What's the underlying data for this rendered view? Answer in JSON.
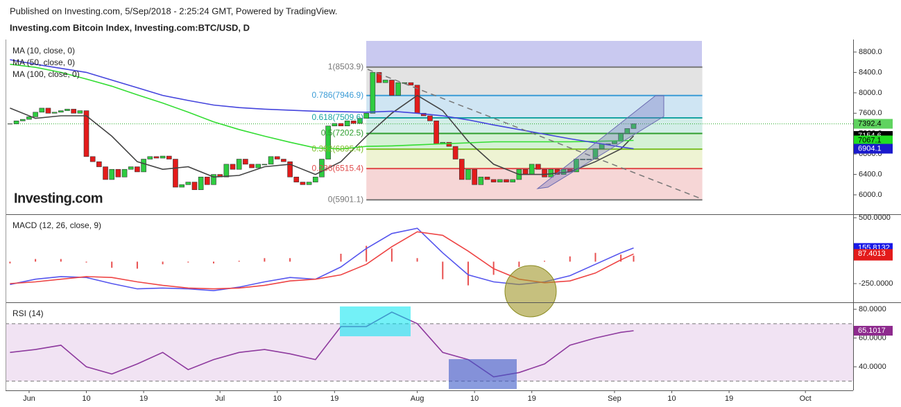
{
  "header": {
    "published": "Published on Investing.com, 5/Sep/2018 - 2:25:24 GMT, Powered by TradingView.",
    "title": "Investing.com Bitcoin Index, Investing.com:BTC/USD, D",
    "logo": "Investing.com"
  },
  "chart_data": [
    {
      "type": "candlestick",
      "xlim": [
        -3.7,
        129.5
      ],
      "ylim": [
        5633,
        9045
      ],
      "yticks": [
        {
          "value": 6000,
          "label": "6000.0"
        },
        {
          "value": 6400,
          "label": "6400.0"
        },
        {
          "value": 6800,
          "label": "6800.0"
        },
        {
          "value": 7200,
          "label": "7200.0"
        },
        {
          "value": 7600,
          "label": "7600.0"
        },
        {
          "value": 8000,
          "label": "8000.0"
        },
        {
          "value": 8400,
          "label": "8400.0"
        },
        {
          "value": 8800,
          "label": "8800.0"
        }
      ],
      "x": [
        -3,
        -2,
        -1,
        0,
        1,
        2,
        3,
        4,
        5,
        6,
        7,
        8,
        9,
        10,
        11,
        12,
        13,
        14,
        15,
        16,
        17,
        18,
        19,
        20,
        21,
        22,
        23,
        24,
        25,
        26,
        27,
        28,
        29,
        30,
        31,
        32,
        33,
        34,
        35,
        36,
        37,
        38,
        39,
        40,
        41,
        42,
        43,
        44,
        45,
        46,
        47,
        48,
        49,
        50,
        51,
        52,
        53,
        54,
        55,
        56,
        57,
        58,
        59,
        60,
        61,
        62,
        63,
        64,
        65,
        66,
        67,
        68,
        69,
        70,
        71,
        72,
        73,
        74,
        75,
        76,
        77,
        78,
        79,
        80,
        81,
        82,
        83,
        84,
        85,
        86,
        87,
        88,
        89,
        90,
        91,
        92,
        93,
        94,
        95
      ],
      "values": [
        7390,
        7450,
        7480,
        7530,
        7620,
        7700,
        7600,
        7620,
        7650,
        7680,
        7600,
        7650,
        6750,
        6650,
        6550,
        6300,
        6500,
        6350,
        6500,
        6550,
        6450,
        6700,
        6750,
        6720,
        6760,
        6700,
        6150,
        6200,
        6250,
        6100,
        6350,
        6200,
        6400,
        6350,
        6600,
        6500,
        6700,
        6600,
        6530,
        6600,
        6600,
        6750,
        6700,
        6650,
        6350,
        6250,
        6200,
        6250,
        6350,
        6700,
        7350,
        7400,
        7350,
        7450,
        7400,
        7500,
        7600,
        8400,
        8200,
        8250,
        7950,
        8200,
        8200,
        8150,
        7600,
        7550,
        7450,
        7000,
        7030,
        6950,
        6700,
        6300,
        6500,
        6200,
        6350,
        6300,
        6250,
        6300,
        6250,
        6300,
        6500,
        6400,
        6600,
        6500,
        6350,
        6500,
        6400,
        6500,
        6450,
        6700,
        6700,
        6700,
        6900,
        7000,
        7000,
        7050,
        7200,
        7300,
        7392.4
      ],
      "up_color": "#2ecc40",
      "down_color": "#e31b1b",
      "last_color": "#5fd35f",
      "series": [
        {
          "name": "MA (10, close, 0)",
          "color": "#444444",
          "label_color": "#000000",
          "x": [
            -3,
            1,
            5,
            9,
            13,
            17,
            21,
            25,
            29,
            33,
            37,
            41,
            45,
            49,
            53,
            57,
            61,
            65,
            69,
            73,
            77,
            81,
            85,
            89,
            93,
            95
          ],
          "values": [
            7700,
            7500,
            7550,
            7550,
            7150,
            6650,
            6500,
            6550,
            6350,
            6380,
            6550,
            6600,
            6400,
            6650,
            7150,
            7600,
            7950,
            7650,
            7050,
            6600,
            6400,
            6400,
            6450,
            6650,
            6900,
            7154.6
          ]
        },
        {
          "name": "MA (50, close, 0)",
          "color": "#33dd33",
          "label_color": "#22dd22",
          "x": [
            -3,
            1,
            5,
            9,
            13,
            17,
            21,
            25,
            29,
            33,
            37,
            41,
            45,
            49,
            53,
            57,
            61,
            65,
            69,
            73,
            77,
            81,
            85,
            89,
            93,
            95
          ],
          "values": [
            8560,
            8500,
            8400,
            8270,
            8130,
            7960,
            7800,
            7620,
            7430,
            7280,
            7150,
            7030,
            6920,
            6900,
            6950,
            6960,
            6980,
            7000,
            7020,
            7040,
            7040,
            7040,
            7040,
            7050,
            7060,
            7067.1
          ]
        },
        {
          "name": "MA (100, close, 0)",
          "color": "#4444dd",
          "label_color": "#1a1acc",
          "x": [
            -3,
            1,
            5,
            9,
            13,
            17,
            21,
            25,
            29,
            33,
            37,
            41,
            45,
            49,
            53,
            57,
            61,
            65,
            69,
            73,
            77,
            81,
            85,
            89,
            93,
            95
          ],
          "values": [
            8650,
            8560,
            8480,
            8400,
            8250,
            8100,
            7950,
            7850,
            7760,
            7710,
            7680,
            7660,
            7640,
            7630,
            7620,
            7640,
            7600,
            7550,
            7470,
            7370,
            7280,
            7190,
            7100,
            7020,
            6940,
            6904.1
          ]
        }
      ],
      "fib_x": [
        53,
        105.8
      ],
      "fib": [
        {
          "value": 8503.9,
          "label": "1(8503.9)",
          "color": "#777777",
          "band_color": "#e3e3e3"
        },
        {
          "value": 7946.9,
          "label": "0.786(7946.9)",
          "color": "#3a9bd6",
          "band_color": "#cfe5f3"
        },
        {
          "value": 7509.6,
          "label": "0.618(7509.6)",
          "color": "#19a3a3",
          "band_color": "#d3eee8"
        },
        {
          "value": 7202.5,
          "label": "0.5(7202.5)",
          "color": "#2e9e2e",
          "band_color": "#d5f1d5"
        },
        {
          "value": 6895.4,
          "label": "0.382(6895.4)",
          "color": "#7cbf26",
          "band_color": "#eef3d3"
        },
        {
          "value": 6515.4,
          "label": "0.236(6515.4)",
          "color": "#e04a4a",
          "band_color": "#f6d6d6"
        },
        {
          "value": 5901.1,
          "label": "0(5901.1)",
          "color": "#777777"
        }
      ]
    },
    {
      "type": "line",
      "title": "MACD (12, 26, close, 9)",
      "xlim": [
        -3.7,
        129.5
      ],
      "ylim": [
        -455,
        524
      ],
      "yticks": [
        {
          "value": -250,
          "label": "-250.0000"
        },
        {
          "value": 500,
          "label": "500.0000"
        }
      ],
      "series": [
        {
          "style": "histogram",
          "color": "#e85050",
          "label_color": "#e31b1b",
          "x": [
            -3,
            1,
            5,
            9,
            13,
            17,
            21,
            25,
            29,
            33,
            37,
            41,
            45,
            49,
            53,
            57,
            61,
            65,
            69,
            73,
            77,
            81,
            85,
            89,
            93,
            95
          ],
          "values": [
            -20,
            30,
            30,
            -10,
            -70,
            -80,
            -30,
            -10,
            -20,
            10,
            40,
            40,
            0,
            90,
            180,
            150,
            40,
            -200,
            -270,
            -150,
            -60,
            10,
            60,
            100,
            80,
            68.4118
          ]
        },
        {
          "color": "#5555ee",
          "label_color": "#1a1ae6",
          "x": [
            -3,
            1,
            5,
            9,
            13,
            17,
            21,
            25,
            29,
            33,
            37,
            41,
            45,
            49,
            53,
            57,
            61,
            65,
            69,
            73,
            77,
            81,
            85,
            89,
            93,
            95
          ],
          "values": [
            -260,
            -200,
            -170,
            -180,
            -250,
            -310,
            -300,
            -310,
            -330,
            -290,
            -230,
            -180,
            -200,
            -60,
            150,
            320,
            380,
            100,
            -150,
            -230,
            -260,
            -230,
            -160,
            -30,
            100,
            155.8132
          ]
        },
        {
          "color": "#ee4444",
          "label_color": "#e31b1b",
          "x": [
            -3,
            1,
            5,
            9,
            13,
            17,
            21,
            25,
            29,
            33,
            37,
            41,
            45,
            49,
            53,
            57,
            61,
            65,
            69,
            73,
            77,
            81,
            85,
            89,
            93,
            95
          ],
          "values": [
            -250,
            -230,
            -200,
            -170,
            -180,
            -230,
            -270,
            -300,
            -310,
            -300,
            -270,
            -220,
            -200,
            -150,
            -30,
            170,
            340,
            300,
            120,
            -80,
            -200,
            -240,
            -220,
            -130,
            20,
            87.4013
          ]
        }
      ]
    },
    {
      "type": "line",
      "title": "RSI (14)",
      "xlim": [
        -3.7,
        129.5
      ],
      "ylim": [
        23.6,
        83.9
      ],
      "yticks": [
        {
          "value": 40,
          "label": "40.0000"
        },
        {
          "value": 60,
          "label": "60.0000"
        },
        {
          "value": 80,
          "label": "80.0000"
        }
      ],
      "band": [
        30,
        70
      ],
      "band_color": "#f1e3f3",
      "xticks": [
        {
          "value": 0,
          "label": "Jun"
        },
        {
          "value": 9,
          "label": "10"
        },
        {
          "value": 18,
          "label": "19"
        },
        {
          "value": 30,
          "label": "Jul"
        },
        {
          "value": 39,
          "label": "10"
        },
        {
          "value": 48,
          "label": "19"
        },
        {
          "value": 61,
          "label": "Aug"
        },
        {
          "value": 70,
          "label": "10"
        },
        {
          "value": 79,
          "label": "19"
        },
        {
          "value": 92,
          "label": "Sep"
        },
        {
          "value": 101,
          "label": "10"
        },
        {
          "value": 110,
          "label": "19"
        },
        {
          "value": 122,
          "label": "Oct"
        }
      ],
      "series": [
        {
          "color": "#8e3a9e",
          "label_color": "#8e2a8e",
          "x": [
            -3,
            1,
            5,
            9,
            13,
            17,
            21,
            25,
            29,
            33,
            37,
            41,
            45,
            49,
            53,
            57,
            61,
            65,
            69,
            73,
            77,
            81,
            85,
            89,
            93,
            95
          ],
          "values": [
            50,
            52,
            55,
            40,
            35,
            42,
            50,
            38,
            45,
            50,
            52,
            49,
            45,
            68,
            68,
            78,
            70,
            50,
            45,
            33,
            36,
            42,
            55,
            60,
            64,
            65.1017
          ]
        }
      ]
    }
  ]
}
